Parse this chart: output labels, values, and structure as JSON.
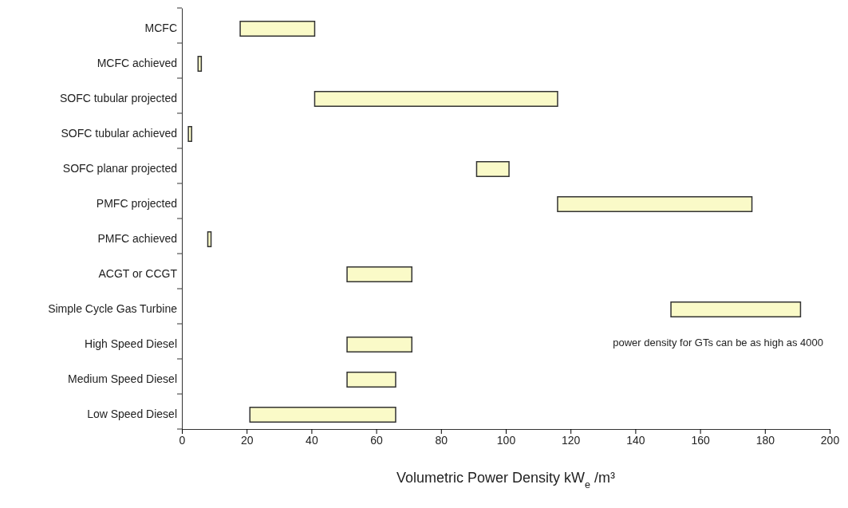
{
  "chart_data": {
    "type": "bar",
    "orientation": "horizontal",
    "categories": [
      "MCFC",
      "MCFC achieved",
      "SOFC tubular projected",
      "SOFC tubular achieved",
      "SOFC planar projected",
      "PMFC projected",
      "PMFC achieved",
      "ACGT or CCGT",
      "Simple Cycle Gas Turbine",
      "High Speed Diesel",
      "Medium Speed Diesel",
      "Low Speed Diesel"
    ],
    "base": [
      18,
      5,
      41,
      2,
      91,
      116,
      8,
      51,
      151,
      51,
      51,
      21
    ],
    "values": [
      23,
      1,
      75,
      1,
      10,
      60,
      1,
      20,
      40,
      20,
      15,
      45
    ],
    "color": "#fafac8",
    "xlim": [
      0,
      200
    ],
    "xticks": [
      0,
      20,
      40,
      60,
      80,
      100,
      120,
      140,
      160,
      180,
      200
    ],
    "xlabel": "Volumetric Power Density   kW$_{e}$ /m³",
    "annotations": [
      "power density for GTs can be as high as 4000"
    ]
  }
}
